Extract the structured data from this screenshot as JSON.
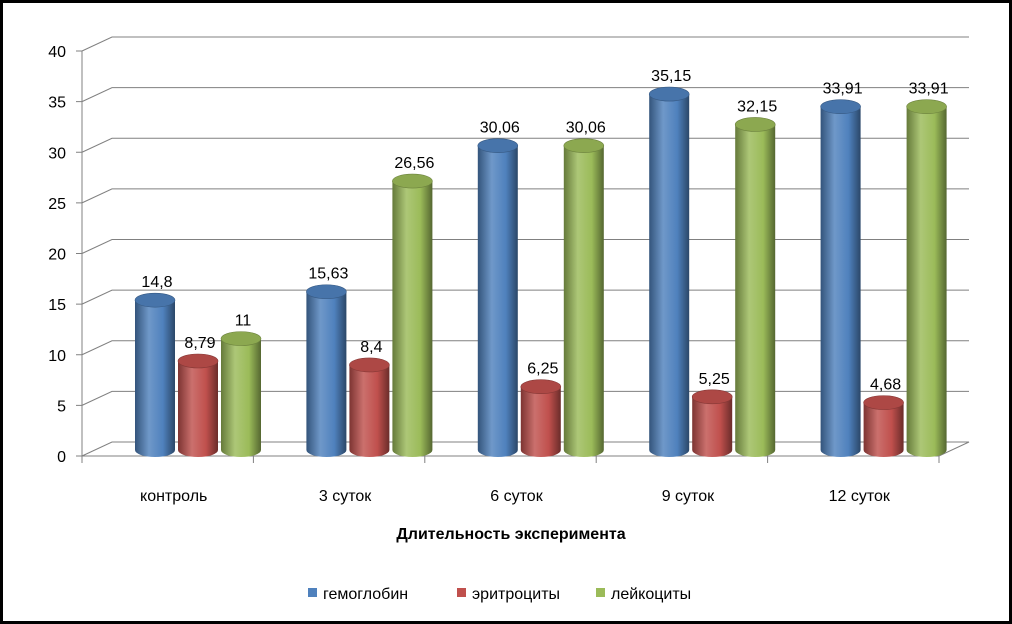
{
  "chart_data": {
    "type": "bar",
    "style": "3d-cylinder",
    "categories": [
      "контроль",
      "3 суток",
      "6 суток",
      "9 суток",
      "12 суток"
    ],
    "series": [
      {
        "name": "гемоглобин",
        "color": "#4F81BD",
        "values": [
          14.8,
          15.63,
          30.06,
          35.15,
          33.91
        ],
        "labels": [
          "14,8",
          "15,63",
          "30,06",
          "35,15",
          "33,91"
        ]
      },
      {
        "name": "эритроциты",
        "color": "#C0504D",
        "values": [
          8.79,
          8.4,
          6.25,
          5.25,
          4.68
        ],
        "labels": [
          "8,79",
          "8,4",
          "6,25",
          "5,25",
          "4,68"
        ]
      },
      {
        "name": "лейкоциты",
        "color": "#9BBB59",
        "values": [
          11,
          26.56,
          30.06,
          32.15,
          33.91
        ],
        "labels": [
          "11",
          "26,56",
          "30,06",
          "32,15",
          "33,91"
        ]
      }
    ],
    "xlabel": "Длительность эксперимента",
    "ylabel": "",
    "ylim": [
      0,
      40
    ],
    "yticks": [
      "0",
      "5",
      "10",
      "15",
      "20",
      "25",
      "30",
      "35",
      "40"
    ],
    "grid": true,
    "legend_position": "bottom"
  }
}
